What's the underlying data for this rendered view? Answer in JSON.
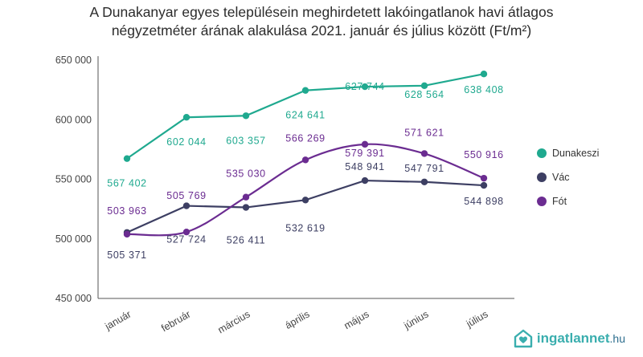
{
  "title_line1": "A Dunakanyar egyes településein meghirdetett lakóingatlanok havi átlagos",
  "title_line2": "négyzetméter árának alakulása 2021. január és július között (Ft/m²)",
  "logo": {
    "name": "ingatlannet",
    "tld": ".hu",
    "icon": "house-heart-icon",
    "color": "#3aaeae"
  },
  "chart_data": {
    "type": "line",
    "title": "A Dunakanyar egyes településein meghirdetett lakóingatlanok havi átlagos négyzetméter árának alakulása 2021. január és július között (Ft/m²)",
    "categories": [
      "január",
      "február",
      "március",
      "április",
      "május",
      "június",
      "július"
    ],
    "ylim": [
      450000,
      650000
    ],
    "yticks": [
      450000,
      500000,
      550000,
      600000,
      650000
    ],
    "ytick_labels": [
      "450 000",
      "500 000",
      "550 000",
      "600 000",
      "650 000"
    ],
    "grid": false,
    "legend_position": "right",
    "series": [
      {
        "name": "Dunakeszi",
        "color": "#1fa98f",
        "smooth": false,
        "values": [
          567402,
          602044,
          603357,
          624641,
          627744,
          628564,
          638408
        ],
        "labels": [
          "567 402",
          "602 044",
          "603 357",
          "624 641",
          "627 744",
          "628 564",
          "638 408"
        ]
      },
      {
        "name": "Vác",
        "color": "#3d3f63",
        "smooth": false,
        "values": [
          505371,
          527724,
          526411,
          532619,
          548941,
          547791,
          544898
        ],
        "labels": [
          "505 371",
          "527 724",
          "526 411",
          "532 619",
          "548 941",
          "547 791",
          "544 898"
        ]
      },
      {
        "name": "Fót",
        "color": "#6b2c91",
        "smooth": true,
        "values": [
          503963,
          505769,
          535030,
          566269,
          579391,
          571621,
          550916
        ],
        "labels": [
          "503 963",
          "505 769",
          "535 030",
          "566 269",
          "579 391",
          "571 621",
          "550 916"
        ]
      }
    ]
  }
}
